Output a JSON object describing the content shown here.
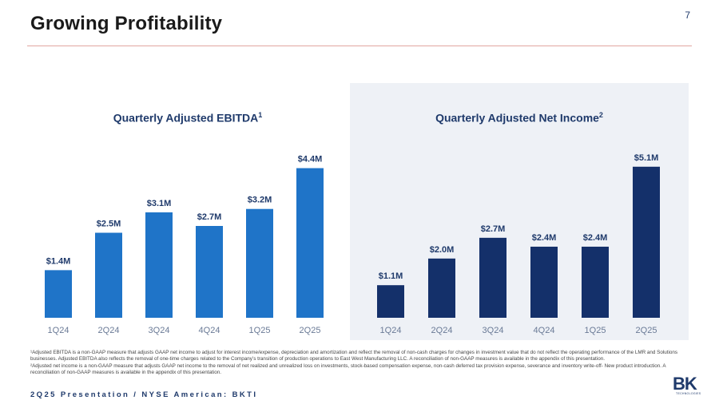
{
  "slide": {
    "title": "Growing Profitability",
    "page_number": "7",
    "footer": "2Q25 Presentation / NYSE American: BKTI",
    "logo": {
      "text": "BK",
      "subtext": "TECHNOLOGIES"
    }
  },
  "chart_data": [
    {
      "type": "bar",
      "title": "Quarterly Adjusted EBITDA",
      "title_sup": "1",
      "categories": [
        "1Q24",
        "2Q24",
        "3Q24",
        "4Q24",
        "1Q25",
        "2Q25"
      ],
      "values": [
        1.4,
        2.5,
        3.1,
        2.7,
        3.2,
        4.4
      ],
      "data_labels": [
        "$1.4M",
        "$2.5M",
        "$3.1M",
        "$2.7M",
        "$3.2M",
        "$4.4M"
      ],
      "units": "$M",
      "ylim": [
        0,
        5.4
      ],
      "bar_color": "#1f74c8"
    },
    {
      "type": "bar",
      "title": "Quarterly Adjusted Net Income",
      "title_sup": "2",
      "categories": [
        "1Q24",
        "2Q24",
        "3Q24",
        "4Q24",
        "1Q25",
        "2Q25"
      ],
      "values": [
        1.1,
        2.0,
        2.7,
        2.4,
        2.4,
        5.1
      ],
      "data_labels": [
        "$1.1M",
        "$2.0M",
        "$2.7M",
        "$2.4M",
        "$2.4M",
        "$5.1M"
      ],
      "units": "$M",
      "ylim": [
        0,
        6.2
      ],
      "bar_color": "#14306a"
    }
  ],
  "footnotes": [
    "¹Adjusted EBITDA is a non-GAAP measure that adjusts GAAP net income to adjust for interest income/expense, depreciation and amortization and reflect the removal of non-cash charges for changes in investment value that do not reflect the operating performance of the LMR and Solutions businesses. Adjusted EBITDA also reflects the removal of one-time charges related to the Company’s transition of production operations to East West Manufacturing LLC. A reconciliation of non-GAAP measures is available in the appendix of this presentation.",
    "²Adjusted net income is a non-GAAP measure that adjusts GAAP net income to the removal of net realized and unrealized loss on investments, stock-based compensation expense, non-cash deferred tax provision expense, severance and inventory write-off- New product introduction. A reconciliation of non-GAAP measures is available in the appendix of this presentation."
  ]
}
